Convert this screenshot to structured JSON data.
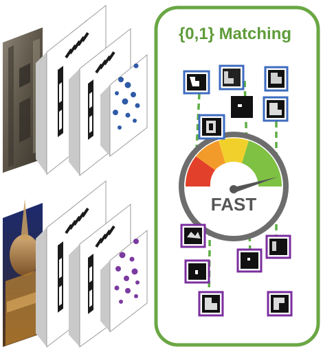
{
  "figure": {
    "panel_title": "{0,1} Matching",
    "gauge_label": "FAST"
  },
  "colors": {
    "panel_border": "#6aa744",
    "panel_title": "#5f9b3a",
    "top_dots": "#2f5aa6",
    "bottom_dots": "#7b3aa0",
    "top_thumb_border": "#3d6bbf",
    "bottom_thumb_border": "#7a2e9e",
    "dashed_lines": "#5fad45",
    "gauge_red": "#e2402a",
    "gauge_orange": "#f39b2a",
    "gauge_yellow": "#f2d02c",
    "gauge_green": "#7ec143",
    "gauge_rim": "#6d6d6d"
  },
  "icons": {
    "top_photo": "gothic-facade-photo",
    "bottom_photo": "cathedral-night-photo",
    "binary_pattern": "zipper-binary-icon"
  }
}
